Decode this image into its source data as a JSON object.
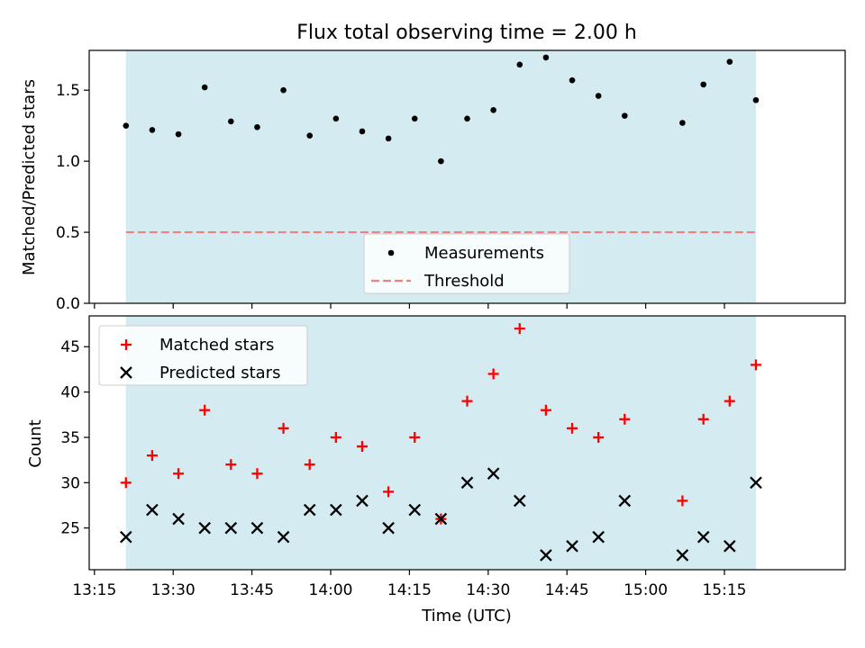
{
  "chart_data": [
    {
      "type": "scatter",
      "title": "Flux total observing time = 2.00 h",
      "ylabel": "Matched/Predicted stars",
      "xlabel": "",
      "ylim": [
        0,
        1.78
      ],
      "xlim": [
        "13:14",
        "15:38"
      ],
      "yticks": [
        0.0,
        0.5,
        1.0,
        1.5
      ],
      "ytick_labels": [
        "0.0",
        "0.5",
        "1.0",
        "1.5"
      ],
      "shaded_interval": [
        "13:21",
        "15:21"
      ],
      "shade_color": "#add8e6",
      "legend": {
        "placement": "lower center",
        "entries": [
          "Measurements",
          "Threshold"
        ]
      },
      "series": [
        {
          "name": "Measurements",
          "marker": "dot",
          "color": "#000000",
          "x": [
            "13:21",
            "13:26",
            "13:31",
            "13:36",
            "13:41",
            "13:46",
            "13:51",
            "13:56",
            "14:01",
            "14:06",
            "14:11",
            "14:16",
            "14:21",
            "14:26",
            "14:31",
            "14:36",
            "14:41",
            "14:46",
            "14:51",
            "14:56",
            "15:07",
            "15:11",
            "15:16",
            "15:21"
          ],
          "y": [
            1.25,
            1.22,
            1.19,
            1.52,
            1.28,
            1.24,
            1.5,
            1.18,
            1.3,
            1.21,
            1.16,
            1.3,
            1.0,
            1.3,
            1.36,
            1.68,
            1.73,
            1.57,
            1.46,
            1.32,
            1.27,
            1.54,
            1.7,
            1.43
          ]
        },
        {
          "name": "Threshold",
          "style": "dashed",
          "color": "#f08080",
          "y": 0.5,
          "x": [
            "13:21",
            "15:21"
          ]
        }
      ]
    },
    {
      "type": "scatter",
      "title": "",
      "ylabel": "Count",
      "xlabel": "Time (UTC)",
      "ylim": [
        20.4,
        48.4
      ],
      "xlim": [
        "13:14",
        "15:38"
      ],
      "yticks": [
        25,
        30,
        35,
        40,
        45
      ],
      "ytick_labels": [
        "25",
        "30",
        "35",
        "40",
        "45"
      ],
      "xticks": [
        "13:15",
        "13:30",
        "13:45",
        "14:00",
        "14:15",
        "14:30",
        "14:45",
        "15:00",
        "15:15"
      ],
      "shaded_interval": [
        "13:21",
        "15:21"
      ],
      "shade_color": "#add8e6",
      "legend": {
        "placement": "upper left",
        "entries": [
          "Matched stars",
          "Predicted stars"
        ]
      },
      "series": [
        {
          "name": "Matched stars",
          "marker": "plus",
          "color": "#ff0000",
          "x": [
            "13:21",
            "13:26",
            "13:31",
            "13:36",
            "13:41",
            "13:46",
            "13:51",
            "13:56",
            "14:01",
            "14:06",
            "14:11",
            "14:16",
            "14:21",
            "14:26",
            "14:31",
            "14:36",
            "14:41",
            "14:46",
            "14:51",
            "14:56",
            "15:07",
            "15:11",
            "15:16",
            "15:21"
          ],
          "y": [
            30,
            33,
            31,
            38,
            32,
            31,
            36,
            32,
            35,
            34,
            29,
            35,
            26,
            39,
            42,
            47,
            38,
            36,
            35,
            37,
            28,
            37,
            39,
            43
          ]
        },
        {
          "name": "Predicted stars",
          "marker": "x",
          "color": "#000000",
          "x": [
            "13:21",
            "13:26",
            "13:31",
            "13:36",
            "13:41",
            "13:46",
            "13:51",
            "13:56",
            "14:01",
            "14:06",
            "14:11",
            "14:16",
            "14:21",
            "14:26",
            "14:31",
            "14:36",
            "14:41",
            "14:46",
            "14:51",
            "14:56",
            "15:07",
            "15:11",
            "15:16",
            "15:21"
          ],
          "y": [
            24,
            27,
            26,
            25,
            25,
            25,
            24,
            27,
            27,
            28,
            25,
            27,
            26,
            30,
            31,
            28,
            22,
            23,
            24,
            28,
            22,
            24,
            23,
            30
          ]
        }
      ]
    }
  ]
}
